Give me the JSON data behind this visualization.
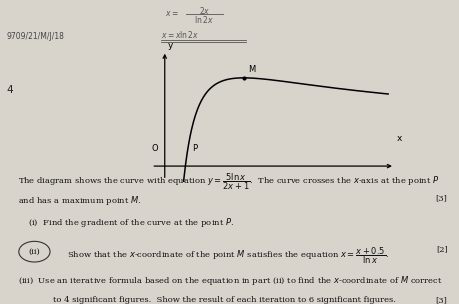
{
  "bg_color": "#d8d4cc",
  "header_text": "9709/21/M/J/18",
  "question_number": "4",
  "curve_label_M": "M",
  "curve_label_P": "P",
  "curve_label_O": "O",
  "axis_label_x": "x",
  "axis_label_y": "y",
  "marks_1": "[3]",
  "marks_2": "[2]",
  "marks_3": "[3]"
}
